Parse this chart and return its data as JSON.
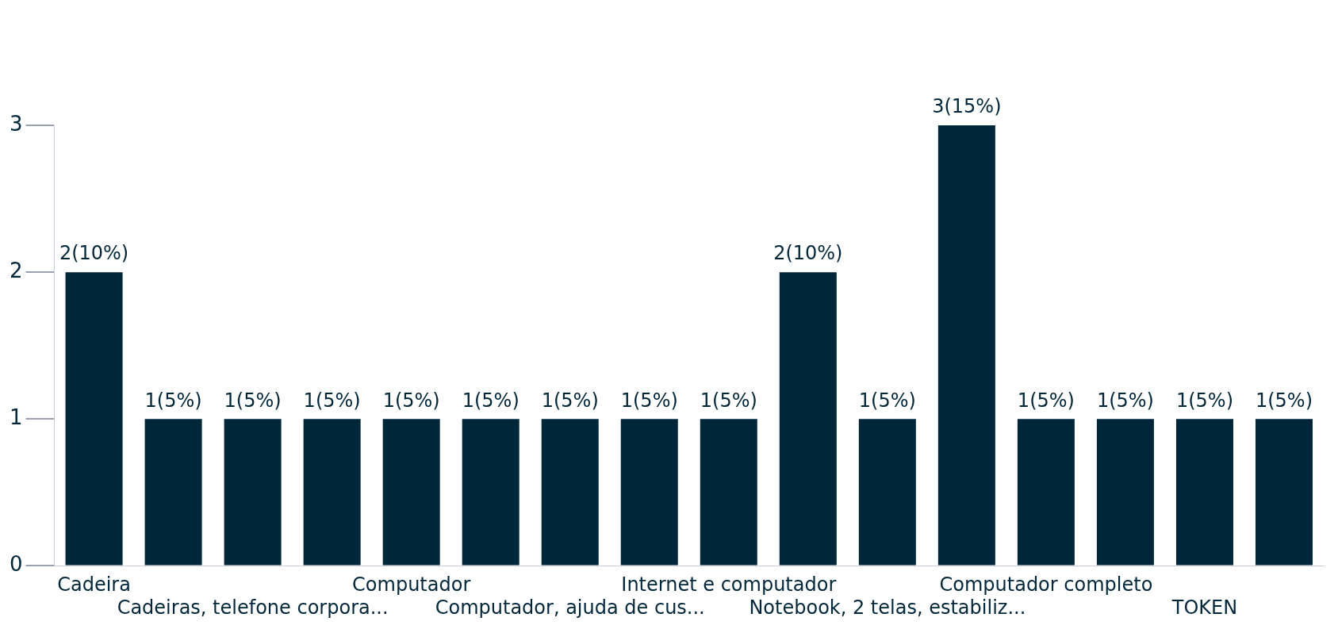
{
  "chart_data": {
    "type": "bar",
    "categories": [
      "Cadeira",
      null,
      "Cadeiras, telefone corpora...",
      null,
      "Computador",
      null,
      "Computador, ajuda de cus...",
      null,
      "Internet e computador",
      null,
      "Notebook, 2 telas, estabiliz...",
      null,
      "Computador completo",
      null,
      "TOKEN",
      null
    ],
    "values": [
      2,
      1,
      1,
      1,
      1,
      1,
      1,
      1,
      1,
      2,
      1,
      3,
      1,
      1,
      1,
      1
    ],
    "value_labels": [
      "2(10%)",
      "1(5%)",
      "1(5%)",
      "1(5%)",
      "1(5%)",
      "1(5%)",
      "1(5%)",
      "1(5%)",
      "1(5%)",
      "2(10%)",
      "1(5%)",
      "3(15%)",
      "1(5%)",
      "1(5%)",
      "1(5%)",
      "1(5%)"
    ],
    "color": "#00263a",
    "ylim": [
      0,
      3
    ],
    "yticks": [
      0,
      1,
      2,
      3
    ],
    "legend": false
  }
}
